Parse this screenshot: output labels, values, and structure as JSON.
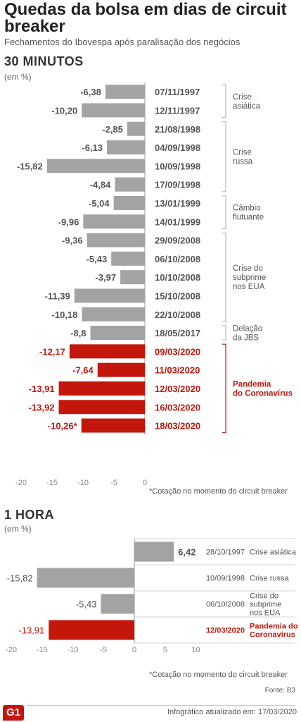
{
  "header": {
    "title": "Quedas da bolsa em dias de circuit breaker",
    "subtitle": "Fechamentos do Ibovespa após paralisação dos negócios"
  },
  "colors": {
    "gray": "#a3a3a3",
    "red": "#c4170c",
    "text": "#333333"
  },
  "chart_data": [
    {
      "type": "bar",
      "title": "30 MINUTOS",
      "unit_label": "(em %)",
      "orientation": "horizontal",
      "xlim": [
        -20,
        0
      ],
      "ticks": [
        "-20",
        "-15",
        "-10",
        "-5",
        "0"
      ],
      "note": "*Cotação no momento do circuit breaker",
      "bars": [
        {
          "label": "-6,38",
          "value": -6.38,
          "date": "07/11/1997",
          "highlight": false
        },
        {
          "label": "-10,20",
          "value": -10.2,
          "date": "12/11/1997",
          "highlight": false
        },
        {
          "label": "-2,85",
          "value": -2.85,
          "date": "21/08/1998",
          "highlight": false
        },
        {
          "label": "-6,13",
          "value": -6.13,
          "date": "04/09/1998",
          "highlight": false
        },
        {
          "label": "-15,82",
          "value": -15.82,
          "date": "10/09/1998",
          "highlight": false
        },
        {
          "label": "-4,84",
          "value": -4.84,
          "date": "17/09/1998",
          "highlight": false
        },
        {
          "label": "-5,04",
          "value": -5.04,
          "date": "13/01/1999",
          "highlight": false
        },
        {
          "label": "-9,96",
          "value": -9.96,
          "date": "14/01/1999",
          "highlight": false
        },
        {
          "label": "-9,36",
          "value": -9.36,
          "date": "29/09/2008",
          "highlight": false
        },
        {
          "label": "-5,43",
          "value": -5.43,
          "date": "06/10/2008",
          "highlight": false
        },
        {
          "label": "-3,97",
          "value": -3.97,
          "date": "10/10/2008",
          "highlight": false
        },
        {
          "label": "-11,39",
          "value": -11.39,
          "date": "15/10/2008",
          "highlight": false
        },
        {
          "label": "-10,18",
          "value": -10.18,
          "date": "22/10/2008",
          "highlight": false
        },
        {
          "label": "-8,8",
          "value": -8.8,
          "date": "18/05/2017",
          "highlight": false
        },
        {
          "label": "-12,17",
          "value": -12.17,
          "date": "09/03/2020",
          "highlight": true
        },
        {
          "label": "-7,64",
          "value": -7.64,
          "date": "11/03/2020",
          "highlight": true
        },
        {
          "label": "-13,91",
          "value": -13.91,
          "date": "12/03/2020",
          "highlight": true
        },
        {
          "label": "-13,92",
          "value": -13.92,
          "date": "16/03/2020",
          "highlight": true
        },
        {
          "label": "-10,26*",
          "value": -10.26,
          "date": "18/03/2020",
          "highlight": true
        }
      ],
      "groups": [
        {
          "lines": [
            "Crise",
            "asiática"
          ],
          "start": 0,
          "end": 1,
          "highlight": false
        },
        {
          "lines": [
            "Crise",
            "russa"
          ],
          "start": 2,
          "end": 5,
          "highlight": false
        },
        {
          "lines": [
            "Câmbio",
            "flutuante"
          ],
          "start": 6,
          "end": 7,
          "highlight": false
        },
        {
          "lines": [
            "Crise do",
            "subprime",
            "nos EUA"
          ],
          "start": 8,
          "end": 12,
          "highlight": false
        },
        {
          "lines": [
            "Delação",
            "da JBS"
          ],
          "start": 13,
          "end": 13,
          "highlight": false
        },
        {
          "lines": [
            "Pandemia",
            "do Coronavírus"
          ],
          "start": 14,
          "end": 18,
          "highlight": true
        }
      ]
    },
    {
      "type": "bar",
      "title": "1 HORA",
      "unit_label": "(em %)",
      "orientation": "horizontal",
      "xlim": [
        -20,
        10
      ],
      "ticks": [
        "-20",
        "-15",
        "-10",
        "-5",
        "0",
        "5",
        "10"
      ],
      "note": "*Cotação no momento do circuit breaker",
      "bars": [
        {
          "label": "6,42",
          "value": 6.42,
          "date": "28/10/1997",
          "group": [
            "Crise asiática"
          ],
          "highlight": false
        },
        {
          "label": "-15,82",
          "value": -15.82,
          "date": "10/09/1998",
          "group": [
            "Crise russa"
          ],
          "highlight": false
        },
        {
          "label": "-5,43",
          "value": -5.43,
          "date": "06/10/2008",
          "group": [
            "Crise do",
            "subprime",
            "nos EUA"
          ],
          "highlight": false
        },
        {
          "label": "-13,91",
          "value": -13.91,
          "date": "12/03/2020",
          "group": [
            "Pandemia do",
            "Coronavírus"
          ],
          "highlight": true
        }
      ]
    }
  ],
  "footer": {
    "source": "Fonte: B3",
    "updated": "Infográfico atualizado em: 17/03/2020",
    "logo": "G1"
  }
}
